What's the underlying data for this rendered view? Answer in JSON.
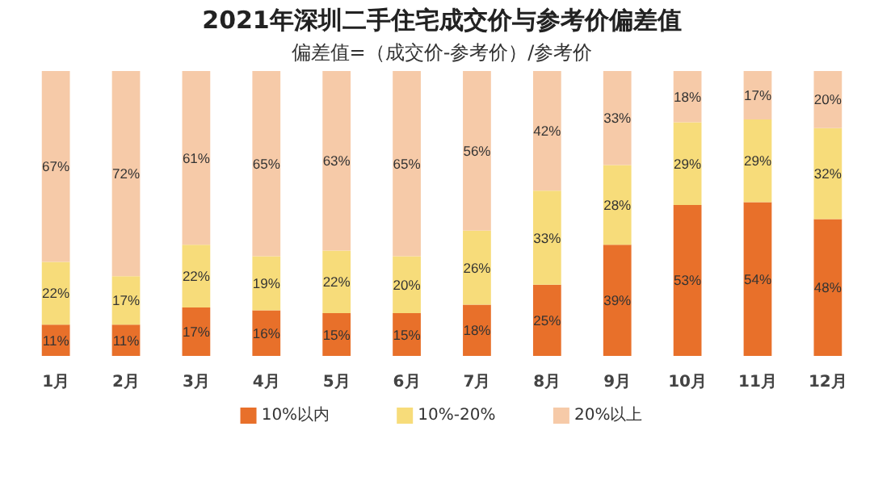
{
  "chart_data": {
    "type": "bar",
    "title": "2021年深圳二手住宅成交价与参考价偏差值",
    "subtitle": "偏差值=（成交价-参考价）/参考价",
    "stacked": true,
    "legend": "bottom",
    "categories": [
      "1月",
      "2月",
      "3月",
      "4月",
      "5月",
      "6月",
      "7月",
      "8月",
      "9月",
      "10月",
      "11月",
      "12月"
    ],
    "series": [
      {
        "name": "10%以内",
        "color": "#e8702a",
        "values": [
          11,
          11,
          17,
          16,
          15,
          15,
          18,
          25,
          39,
          53,
          54,
          48
        ],
        "value_labels": [
          "11%",
          "11%",
          "17%",
          "16%",
          "15%",
          "15%",
          "18%",
          "25%",
          "39%",
          "53%",
          "54%",
          "48%"
        ]
      },
      {
        "name": "10%-20%",
        "color": "#f7dc7a",
        "values": [
          22,
          17,
          22,
          19,
          22,
          20,
          26,
          33,
          28,
          29,
          29,
          32
        ],
        "value_labels": [
          "22%",
          "17%",
          "22%",
          "19%",
          "22%",
          "20%",
          "26%",
          "33%",
          "28%",
          "29%",
          "29%",
          "32%"
        ]
      },
      {
        "name": "20%以上",
        "color": "#f6caa8",
        "values": [
          67,
          72,
          61,
          65,
          63,
          65,
          56,
          42,
          33,
          18,
          17,
          20
        ],
        "value_labels": [
          "67%",
          "72%",
          "61%",
          "65%",
          "63%",
          "65%",
          "56%",
          "42%",
          "33%",
          "18%",
          "17%",
          "20%"
        ]
      }
    ]
  }
}
